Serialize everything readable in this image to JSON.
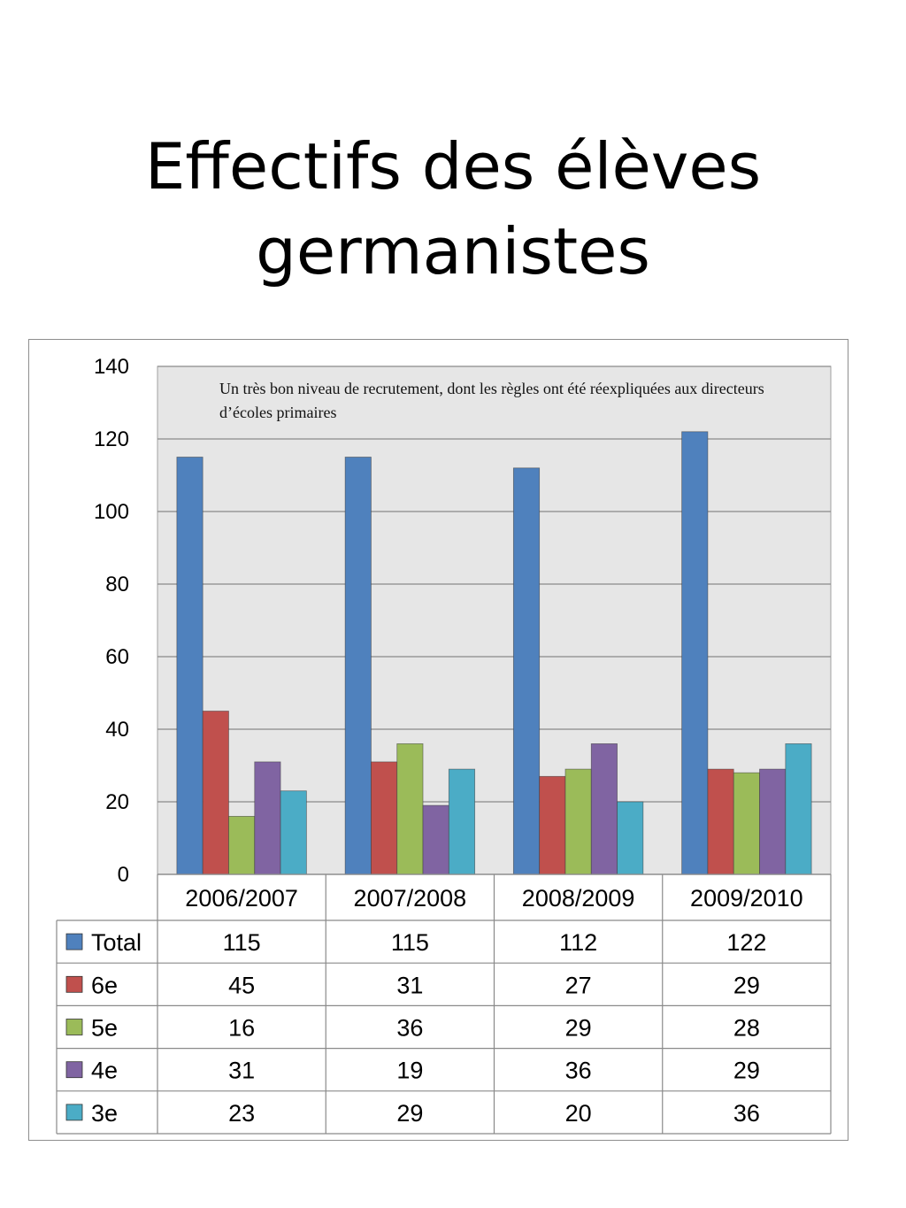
{
  "slide": {
    "title_line1": "Effectifs des élèves",
    "title_line2": "germanistes"
  },
  "chart_data": {
    "type": "bar",
    "categories": [
      "2006/2007",
      "2007/2008",
      "2008/2009",
      "2009/2010"
    ],
    "series": [
      {
        "name": "Total",
        "values": [
          115,
          115,
          112,
          122
        ],
        "color": "#4F81BD"
      },
      {
        "name": "6e",
        "values": [
          45,
          31,
          27,
          29
        ],
        "color": "#C0504D"
      },
      {
        "name": "5e",
        "values": [
          16,
          36,
          29,
          28
        ],
        "color": "#9BBB59"
      },
      {
        "name": "4e",
        "values": [
          31,
          19,
          36,
          29
        ],
        "color": "#8064A2"
      },
      {
        "name": "3e",
        "values": [
          23,
          29,
          20,
          36
        ],
        "color": "#4BACC6"
      }
    ],
    "ylim": [
      0,
      140
    ],
    "yticks": [
      0,
      20,
      40,
      60,
      80,
      100,
      120,
      140
    ],
    "grid": true,
    "legend": "data-table-below",
    "annotation": "Un très bon niveau de recrutement, dont les règles ont été réexpliquées aux directeurs d’écoles primaires",
    "plot_background": "#E6E6E6"
  }
}
